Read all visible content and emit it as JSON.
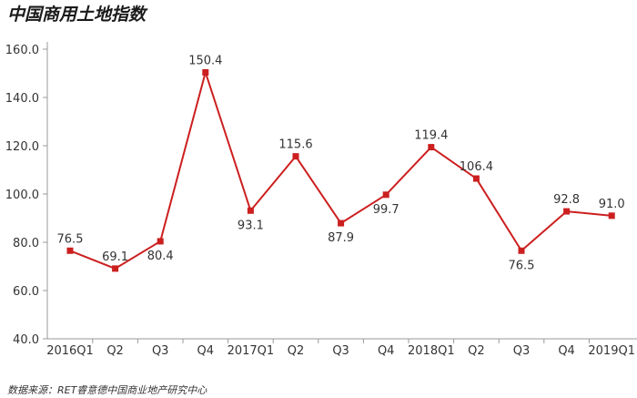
{
  "chart_data": {
    "type": "line",
    "title": "中国商用土地指数",
    "source": "数据来源：RET睿意德中国商业地产研究中心",
    "categories": [
      "2016Q1",
      "Q2",
      "Q3",
      "Q4",
      "2017Q1",
      "Q2",
      "Q3",
      "Q4",
      "2018Q1",
      "Q2",
      "Q3",
      "Q4",
      "2019Q1"
    ],
    "series": [
      {
        "values": [
          76.5,
          69.1,
          80.4,
          150.4,
          93.1,
          115.6,
          87.9,
          99.7,
          119.4,
          106.4,
          76.5,
          92.8,
          91.0
        ]
      }
    ],
    "data_labels": [
      "76.5",
      "69.1",
      "80.4",
      "150.4",
      "93.1",
      "115.6",
      "87.9",
      "99.7",
      "119.4",
      "106.4",
      "76.5",
      "92.8",
      "91.0"
    ],
    "label_positions": [
      "above",
      "above",
      "below",
      "above",
      "below",
      "above",
      "below",
      "below",
      "above",
      "above",
      "below",
      "above",
      "above"
    ],
    "y_ticks": [
      "40.0",
      "60.0",
      "80.0",
      "100.0",
      "120.0",
      "140.0",
      "160.0"
    ],
    "ylim": [
      40,
      160
    ],
    "line_color": "#cc1f1f",
    "axis_color": "#999999",
    "grid": false,
    "legend": "none"
  }
}
